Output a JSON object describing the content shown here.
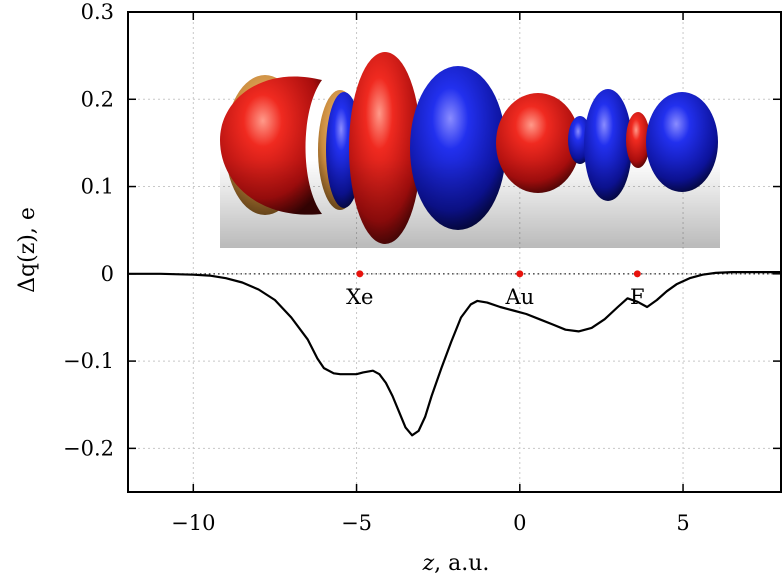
{
  "chart_data": {
    "type": "line",
    "xlabel_italic": "z",
    "xlabel_rest": ", a.u.",
    "ylabel": "Δq(z), e",
    "xlim": [
      -12,
      8
    ],
    "ylim": [
      -0.25,
      0.3
    ],
    "xticks": [
      -10,
      -5,
      0,
      5
    ],
    "xtick_labels": [
      "−10",
      "−5",
      "0",
      "5"
    ],
    "yticks": [
      0.3,
      0.2,
      0.1,
      0,
      -0.1,
      -0.2
    ],
    "ytick_labels": [
      "0.3",
      "0.2",
      "0.1",
      "0",
      "−0.1",
      "−0.2"
    ],
    "grid": true,
    "series": [
      {
        "color": "#000000",
        "points": [
          [
            -12,
            0.0
          ],
          [
            -11,
            0.0
          ],
          [
            -10,
            -0.001
          ],
          [
            -9.5,
            -0.002
          ],
          [
            -9,
            -0.005
          ],
          [
            -8.5,
            -0.01
          ],
          [
            -8,
            -0.018
          ],
          [
            -7.5,
            -0.03
          ],
          [
            -7,
            -0.05
          ],
          [
            -6.5,
            -0.075
          ],
          [
            -6.2,
            -0.097
          ],
          [
            -6.0,
            -0.108
          ],
          [
            -5.7,
            -0.114
          ],
          [
            -5.5,
            -0.115
          ],
          [
            -5.2,
            -0.115
          ],
          [
            -5.0,
            -0.115
          ],
          [
            -4.8,
            -0.113
          ],
          [
            -4.5,
            -0.111
          ],
          [
            -4.3,
            -0.115
          ],
          [
            -4.1,
            -0.125
          ],
          [
            -3.9,
            -0.14
          ],
          [
            -3.7,
            -0.158
          ],
          [
            -3.5,
            -0.176
          ],
          [
            -3.3,
            -0.185
          ],
          [
            -3.1,
            -0.18
          ],
          [
            -2.9,
            -0.164
          ],
          [
            -2.7,
            -0.14
          ],
          [
            -2.4,
            -0.108
          ],
          [
            -2.1,
            -0.078
          ],
          [
            -1.8,
            -0.05
          ],
          [
            -1.5,
            -0.035
          ],
          [
            -1.3,
            -0.031
          ],
          [
            -1.0,
            -0.033
          ],
          [
            -0.6,
            -0.038
          ],
          [
            -0.2,
            -0.042
          ],
          [
            0.2,
            -0.046
          ],
          [
            0.6,
            -0.052
          ],
          [
            1.0,
            -0.058
          ],
          [
            1.4,
            -0.064
          ],
          [
            1.8,
            -0.066
          ],
          [
            2.2,
            -0.062
          ],
          [
            2.6,
            -0.052
          ],
          [
            3.0,
            -0.038
          ],
          [
            3.3,
            -0.028
          ],
          [
            3.6,
            -0.032
          ],
          [
            3.9,
            -0.038
          ],
          [
            4.2,
            -0.03
          ],
          [
            4.5,
            -0.02
          ],
          [
            4.8,
            -0.012
          ],
          [
            5.2,
            -0.005
          ],
          [
            5.6,
            -0.001
          ],
          [
            6.0,
            0.001
          ],
          [
            6.5,
            0.002
          ],
          [
            7.0,
            0.002
          ],
          [
            8.0,
            0.002
          ]
        ]
      }
    ],
    "atoms": [
      {
        "label": "Xe",
        "x": -4.9
      },
      {
        "label": "Au",
        "x": 0.0
      },
      {
        "label": "F",
        "x": 3.6
      }
    ],
    "atom_marker_color": "#e8120c",
    "isosurface_colors": {
      "positive": "#d81c1c",
      "negative": "#1f2bd6",
      "interface": "#e0a050"
    }
  }
}
